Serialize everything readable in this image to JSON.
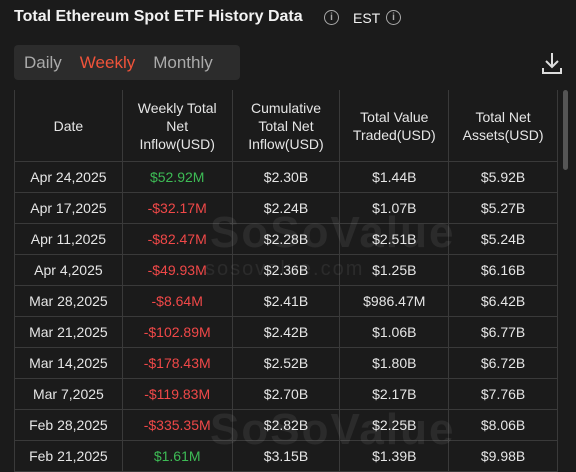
{
  "header": {
    "title": "Total Ethereum Spot ETF History Data",
    "timezone": "EST"
  },
  "tabs": {
    "items": [
      "Daily",
      "Weekly",
      "Monthly"
    ],
    "active": 1
  },
  "watermark": {
    "brand": "SoSoValue",
    "site": "sosovalue.com"
  },
  "table": {
    "columns": [
      [
        "Date"
      ],
      [
        "Weekly Total",
        "Net",
        "Inflow(USD)"
      ],
      [
        "Cumulative",
        "Total Net",
        "Inflow(USD)"
      ],
      [
        "Total Value",
        "Traded(USD)"
      ],
      [
        "Total Net",
        "Assets(USD)"
      ]
    ],
    "rows": [
      [
        "Apr 24,2025",
        "$52.92M",
        "$2.30B",
        "$1.44B",
        "$5.92B"
      ],
      [
        "Apr 17,2025",
        "-$32.17M",
        "$2.24B",
        "$1.07B",
        "$5.27B"
      ],
      [
        "Apr 11,2025",
        "-$82.47M",
        "$2.28B",
        "$2.51B",
        "$5.24B"
      ],
      [
        "Apr 4,2025",
        "-$49.93M",
        "$2.36B",
        "$1.25B",
        "$6.16B"
      ],
      [
        "Mar 28,2025",
        "-$8.64M",
        "$2.41B",
        "$986.47M",
        "$6.42B"
      ],
      [
        "Mar 21,2025",
        "-$102.89M",
        "$2.42B",
        "$1.06B",
        "$6.77B"
      ],
      [
        "Mar 14,2025",
        "-$178.43M",
        "$2.52B",
        "$1.80B",
        "$6.72B"
      ],
      [
        "Mar 7,2025",
        "-$119.83M",
        "$2.70B",
        "$2.17B",
        "$7.76B"
      ],
      [
        "Feb 28,2025",
        "-$335.35M",
        "$2.82B",
        "$2.25B",
        "$8.06B"
      ],
      [
        "Feb 21,2025",
        "$1.61M",
        "$3.15B",
        "$1.39B",
        "$9.98B"
      ]
    ]
  }
}
